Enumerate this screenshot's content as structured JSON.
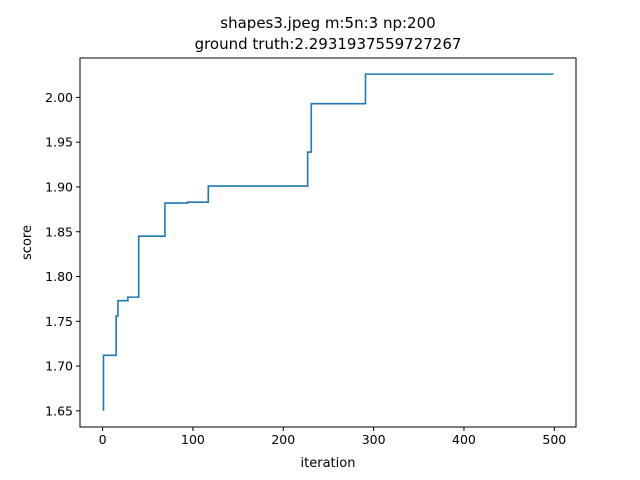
{
  "chart_data": {
    "type": "line",
    "title": "shapes3.jpeg m:5n:3 np:200",
    "subtitle": "ground truth:2.2931937559727267",
    "xlabel": "iteration",
    "ylabel": "score",
    "xlim": [
      -25,
      524
    ],
    "ylim": [
      1.632,
      2.044
    ],
    "x_ticks": [
      0,
      100,
      200,
      300,
      400,
      500
    ],
    "x_tick_labels": [
      "0",
      "100",
      "200",
      "300",
      "400",
      "500"
    ],
    "y_ticks": [
      1.65,
      1.7,
      1.75,
      1.8,
      1.85,
      1.9,
      1.95,
      2.0
    ],
    "y_tick_labels": [
      "1.65",
      "1.70",
      "1.75",
      "1.80",
      "1.85",
      "1.90",
      "1.95",
      "2.00"
    ],
    "grid": false,
    "series": [
      {
        "color": "#1f77b4",
        "step": "post",
        "x": [
          0,
          1,
          15,
          17,
          24,
          28,
          39,
          40,
          68,
          69,
          93,
          94,
          116,
          117,
          227,
          228,
          230,
          231,
          290,
          291,
          499
        ],
        "y": [
          1.651,
          1.712,
          1.756,
          1.773,
          1.773,
          1.777,
          1.777,
          1.845,
          1.845,
          1.882,
          1.882,
          1.883,
          1.883,
          1.901,
          1.939,
          1.939,
          1.939,
          1.993,
          1.993,
          2.026,
          2.026
        ]
      }
    ]
  }
}
